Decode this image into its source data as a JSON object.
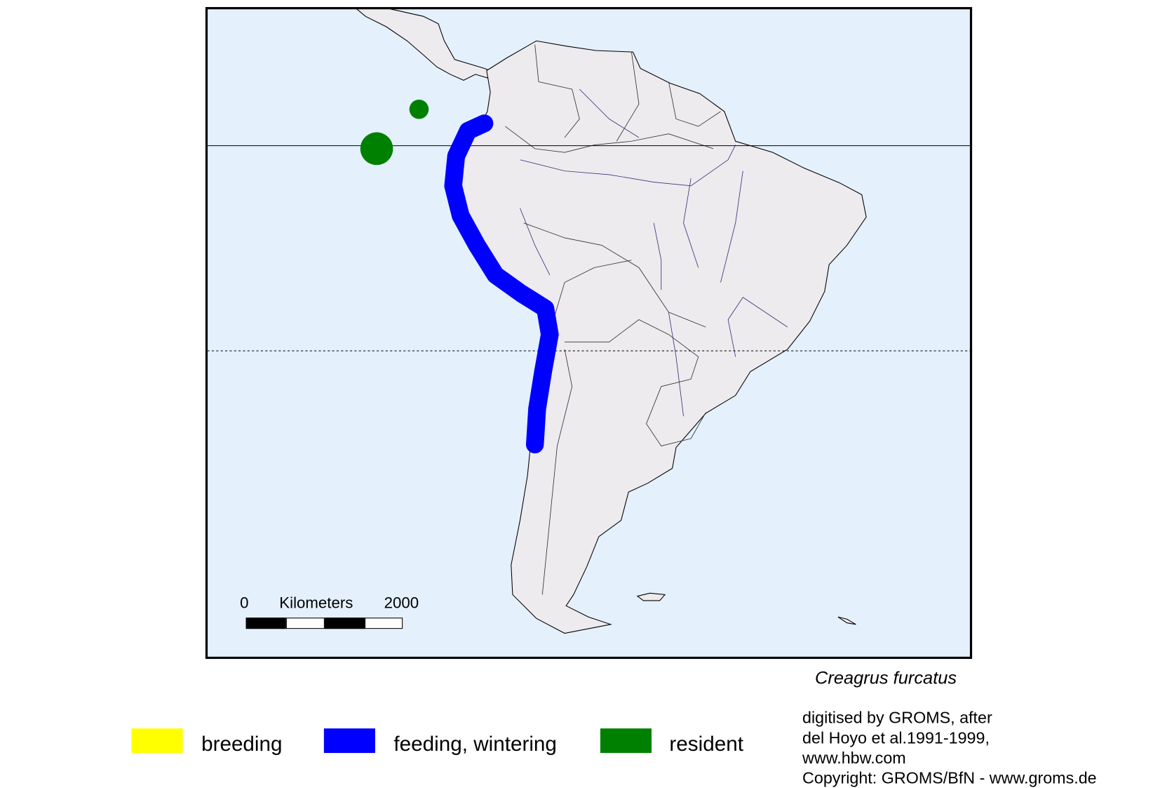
{
  "species": "Creagrus furcatus",
  "scale_bar": {
    "start": "0",
    "unit": "Kilometers",
    "end": "2000"
  },
  "legend": [
    {
      "label": "breeding",
      "color": "#ffff00"
    },
    {
      "label": "feeding, wintering",
      "color": "#0000ff"
    },
    {
      "label": "resident",
      "color": "#008000"
    }
  ],
  "credits": [
    "digitised by GROMS, after",
    "del Hoyo et al.1991-1999,",
    "www.hbw.com",
    "Copyright: GROMS/BfN - www.groms.de"
  ],
  "colors": {
    "ocean": "#e4f0fc",
    "land": "#eeebef",
    "feeding": "#0000ff",
    "resident": "#008000"
  }
}
